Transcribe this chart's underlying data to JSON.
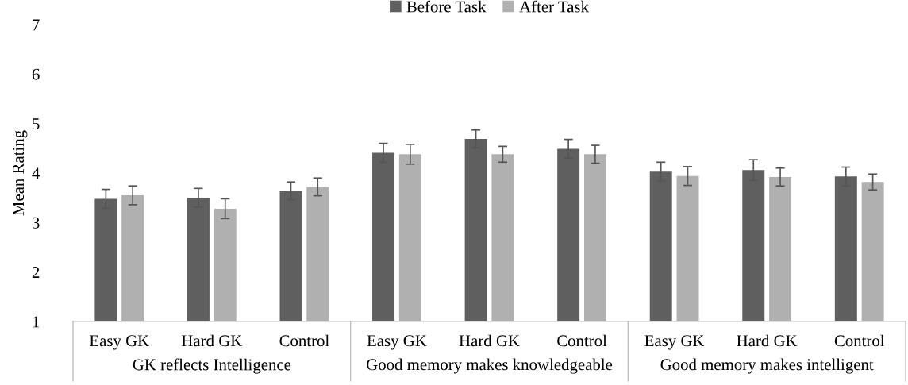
{
  "chart_data": {
    "type": "bar",
    "ylabel": "Mean Rating",
    "categories": [
      "Easy GK",
      "Hard GK",
      "Control",
      "Easy GK",
      "Hard GK",
      "Control",
      "Easy GK",
      "Hard GK",
      "Control"
    ],
    "series": [
      {
        "name": "Before Task",
        "color": "#5f5f5f",
        "values": [
          3.48,
          3.5,
          3.64,
          4.41,
          4.69,
          4.49,
          4.03,
          4.06,
          3.93
        ],
        "errors": [
          0.19,
          0.19,
          0.18,
          0.19,
          0.18,
          0.19,
          0.19,
          0.21,
          0.19
        ]
      },
      {
        "name": "After Task",
        "color": "#b0b0b0",
        "values": [
          3.55,
          3.28,
          3.72,
          4.38,
          4.38,
          4.38,
          3.94,
          3.92,
          3.82
        ],
        "errors": [
          0.19,
          0.2,
          0.18,
          0.2,
          0.16,
          0.18,
          0.19,
          0.18,
          0.16
        ]
      }
    ],
    "annotations": [
      "GK reflects Intelligence",
      "Good memory makes knowledgeable",
      "Good memory makes intelligent"
    ],
    "ylim": [
      1,
      7
    ],
    "yticks": [
      1,
      2,
      3,
      4,
      5,
      6,
      7
    ],
    "grid": false,
    "legend": "top"
  }
}
